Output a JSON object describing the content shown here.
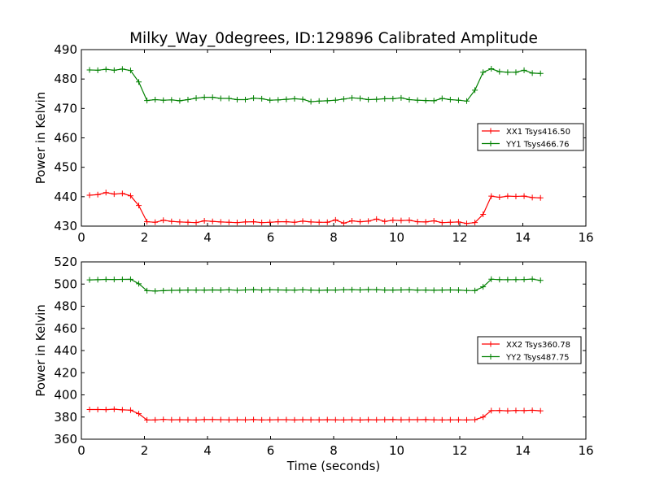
{
  "title": "Milky_Way_0degrees, ID:129896 Calibrated Amplitude",
  "xlabel": "Time (seconds)",
  "chart_data": [
    {
      "type": "line",
      "xlabel": "",
      "ylabel": "Power in Kelvin",
      "xlim": [
        0,
        16
      ],
      "ylim": [
        430,
        490
      ],
      "xticks": [
        "0",
        "2",
        "4",
        "6",
        "8",
        "10",
        "12",
        "14",
        "16"
      ],
      "yticks": [
        "430",
        "440",
        "450",
        "460",
        "470",
        "480",
        "490"
      ],
      "grid": false,
      "legend": "center-right",
      "x": [
        0.26,
        0.52,
        0.78,
        1.04,
        1.3,
        1.56,
        1.82,
        2.08,
        2.34,
        2.6,
        2.86,
        3.12,
        3.38,
        3.64,
        3.9,
        4.16,
        4.42,
        4.68,
        4.94,
        5.2,
        5.46,
        5.72,
        5.98,
        6.24,
        6.5,
        6.76,
        7.02,
        7.28,
        7.54,
        7.8,
        8.06,
        8.32,
        8.58,
        8.84,
        9.1,
        9.36,
        9.62,
        9.88,
        10.14,
        10.4,
        10.66,
        10.92,
        11.18,
        11.44,
        11.7,
        11.96,
        12.22,
        12.48,
        12.74,
        13.0,
        13.26,
        13.52,
        13.78,
        14.04,
        14.3,
        14.56
      ],
      "series": [
        {
          "name": "XX1 Tsys416.50",
          "color": "#ff0000",
          "values": [
            440.5,
            440.7,
            441.4,
            440.9,
            441.1,
            440.3,
            437.0,
            431.5,
            431.3,
            432.0,
            431.6,
            431.4,
            431.3,
            431.2,
            431.8,
            431.6,
            431.4,
            431.3,
            431.2,
            431.4,
            431.5,
            431.2,
            431.3,
            431.5,
            431.5,
            431.3,
            431.7,
            431.4,
            431.3,
            431.3,
            432.1,
            431.0,
            431.8,
            431.5,
            431.7,
            432.4,
            431.6,
            432.0,
            431.9,
            432.0,
            431.5,
            431.4,
            431.8,
            431.2,
            431.3,
            431.4,
            430.9,
            431.2,
            434.0,
            440.2,
            439.8,
            440.2,
            440.1,
            440.2,
            439.7,
            439.6
          ]
        },
        {
          "name": "YY1 Tsys466.76",
          "color": "#008000",
          "values": [
            483.1,
            483.0,
            483.3,
            483.0,
            483.4,
            482.9,
            479.0,
            472.7,
            473.0,
            472.8,
            472.9,
            472.6,
            473.0,
            473.5,
            473.8,
            473.8,
            473.4,
            473.4,
            473.0,
            473.0,
            473.5,
            473.3,
            472.8,
            472.9,
            473.1,
            473.3,
            473.1,
            472.3,
            472.5,
            472.6,
            472.8,
            473.2,
            473.6,
            473.4,
            473.0,
            473.1,
            473.3,
            473.3,
            473.6,
            473.0,
            472.8,
            472.7,
            472.6,
            473.4,
            473.0,
            472.8,
            472.5,
            476.2,
            482.3,
            483.5,
            482.5,
            482.3,
            482.3,
            483.0,
            482.0,
            481.9
          ]
        }
      ]
    },
    {
      "type": "line",
      "xlabel": "Time (seconds)",
      "ylabel": "Power in Kelvin",
      "xlim": [
        0,
        16
      ],
      "ylim": [
        360,
        520
      ],
      "xticks": [
        "0",
        "2",
        "4",
        "6",
        "8",
        "10",
        "12",
        "14",
        "16"
      ],
      "yticks": [
        "360",
        "380",
        "400",
        "420",
        "440",
        "460",
        "480",
        "500",
        "520"
      ],
      "grid": false,
      "legend": "center-right",
      "x": [
        0.26,
        0.52,
        0.78,
        1.04,
        1.3,
        1.56,
        1.82,
        2.08,
        2.34,
        2.6,
        2.86,
        3.12,
        3.38,
        3.64,
        3.9,
        4.16,
        4.42,
        4.68,
        4.94,
        5.2,
        5.46,
        5.72,
        5.98,
        6.24,
        6.5,
        6.76,
        7.02,
        7.28,
        7.54,
        7.8,
        8.06,
        8.32,
        8.58,
        8.84,
        9.1,
        9.36,
        9.62,
        9.88,
        10.14,
        10.4,
        10.66,
        10.92,
        11.18,
        11.44,
        11.7,
        11.96,
        12.22,
        12.48,
        12.74,
        13.0,
        13.26,
        13.52,
        13.78,
        14.04,
        14.3,
        14.56
      ],
      "series": [
        {
          "name": "XX2 Tsys360.78",
          "color": "#ff0000",
          "values": [
            386.8,
            386.8,
            386.7,
            387.1,
            386.5,
            386.2,
            383.0,
            377.3,
            377.4,
            377.8,
            377.5,
            377.6,
            377.5,
            377.4,
            377.7,
            377.7,
            377.6,
            377.5,
            377.6,
            377.5,
            377.7,
            377.4,
            377.5,
            377.6,
            377.6,
            377.4,
            377.6,
            377.5,
            377.5,
            377.6,
            377.5,
            377.4,
            377.6,
            377.3,
            377.6,
            377.5,
            377.6,
            377.7,
            377.5,
            377.6,
            377.6,
            377.7,
            377.5,
            377.4,
            377.5,
            377.5,
            377.4,
            377.6,
            380.0,
            385.8,
            385.9,
            385.6,
            385.9,
            385.8,
            386.1,
            385.6
          ]
        },
        {
          "name": "YY2 Tsys487.75",
          "color": "#008000",
          "values": [
            503.8,
            503.9,
            504.2,
            504.1,
            504.2,
            504.3,
            500.3,
            494.0,
            493.7,
            494.0,
            494.3,
            494.4,
            494.6,
            494.5,
            494.5,
            494.7,
            494.6,
            494.8,
            494.3,
            494.7,
            494.9,
            494.6,
            494.8,
            494.7,
            494.6,
            494.5,
            494.8,
            494.5,
            494.3,
            494.6,
            494.6,
            494.8,
            494.9,
            494.7,
            495.0,
            494.9,
            494.6,
            494.6,
            494.7,
            494.8,
            494.5,
            494.6,
            494.4,
            494.6,
            494.7,
            494.6,
            494.2,
            494.1,
            497.5,
            504.4,
            504.0,
            503.9,
            504.0,
            504.1,
            504.5,
            503.3
          ]
        }
      ]
    }
  ]
}
